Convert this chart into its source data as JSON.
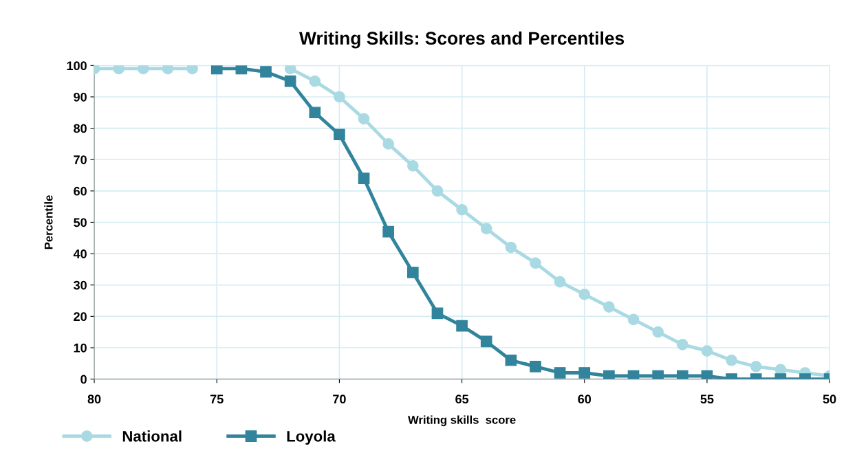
{
  "chart_data": {
    "type": "line",
    "title": "Writing Skills: Scores and Percentiles",
    "xlabel": "Writing skills  score",
    "ylabel": "Percentile",
    "series": [
      {
        "name": "National",
        "color": "#a9dae3",
        "marker": "circle",
        "x": [
          80,
          79,
          78,
          77,
          76,
          75,
          74,
          73,
          72,
          71,
          70,
          69,
          68,
          67,
          66,
          65,
          64,
          63,
          62,
          61,
          60,
          59,
          58,
          57,
          56,
          55,
          54,
          53,
          52,
          51,
          50
        ],
        "values": [
          99,
          99,
          99,
          99,
          99,
          null,
          null,
          null,
          99,
          95,
          90,
          83,
          75,
          68,
          60,
          54,
          48,
          42,
          37,
          31,
          27,
          23,
          19,
          15,
          11,
          9,
          6,
          4,
          3,
          2,
          1
        ]
      },
      {
        "name": "Loyola",
        "color": "#31849b",
        "marker": "square",
        "x": [
          75,
          74,
          73,
          72,
          71,
          70,
          69,
          68,
          67,
          66,
          65,
          64,
          63,
          62,
          61,
          60,
          59,
          58,
          57,
          56,
          55,
          54,
          53,
          52,
          51,
          50
        ],
        "values": [
          99,
          99,
          98,
          95,
          85,
          78,
          64,
          47,
          34,
          21,
          17,
          12,
          6,
          4,
          2,
          2,
          1,
          1,
          1,
          1,
          1,
          0,
          0,
          0,
          0,
          0
        ]
      }
    ],
    "xlim": [
      80,
      50
    ],
    "xticks": [
      80,
      75,
      70,
      65,
      60,
      55,
      50
    ],
    "ylim": [
      0,
      100
    ],
    "yticks": [
      0,
      10,
      20,
      30,
      40,
      50,
      60,
      70,
      80,
      90,
      100
    ],
    "grid": true,
    "legend": "bottom left"
  }
}
